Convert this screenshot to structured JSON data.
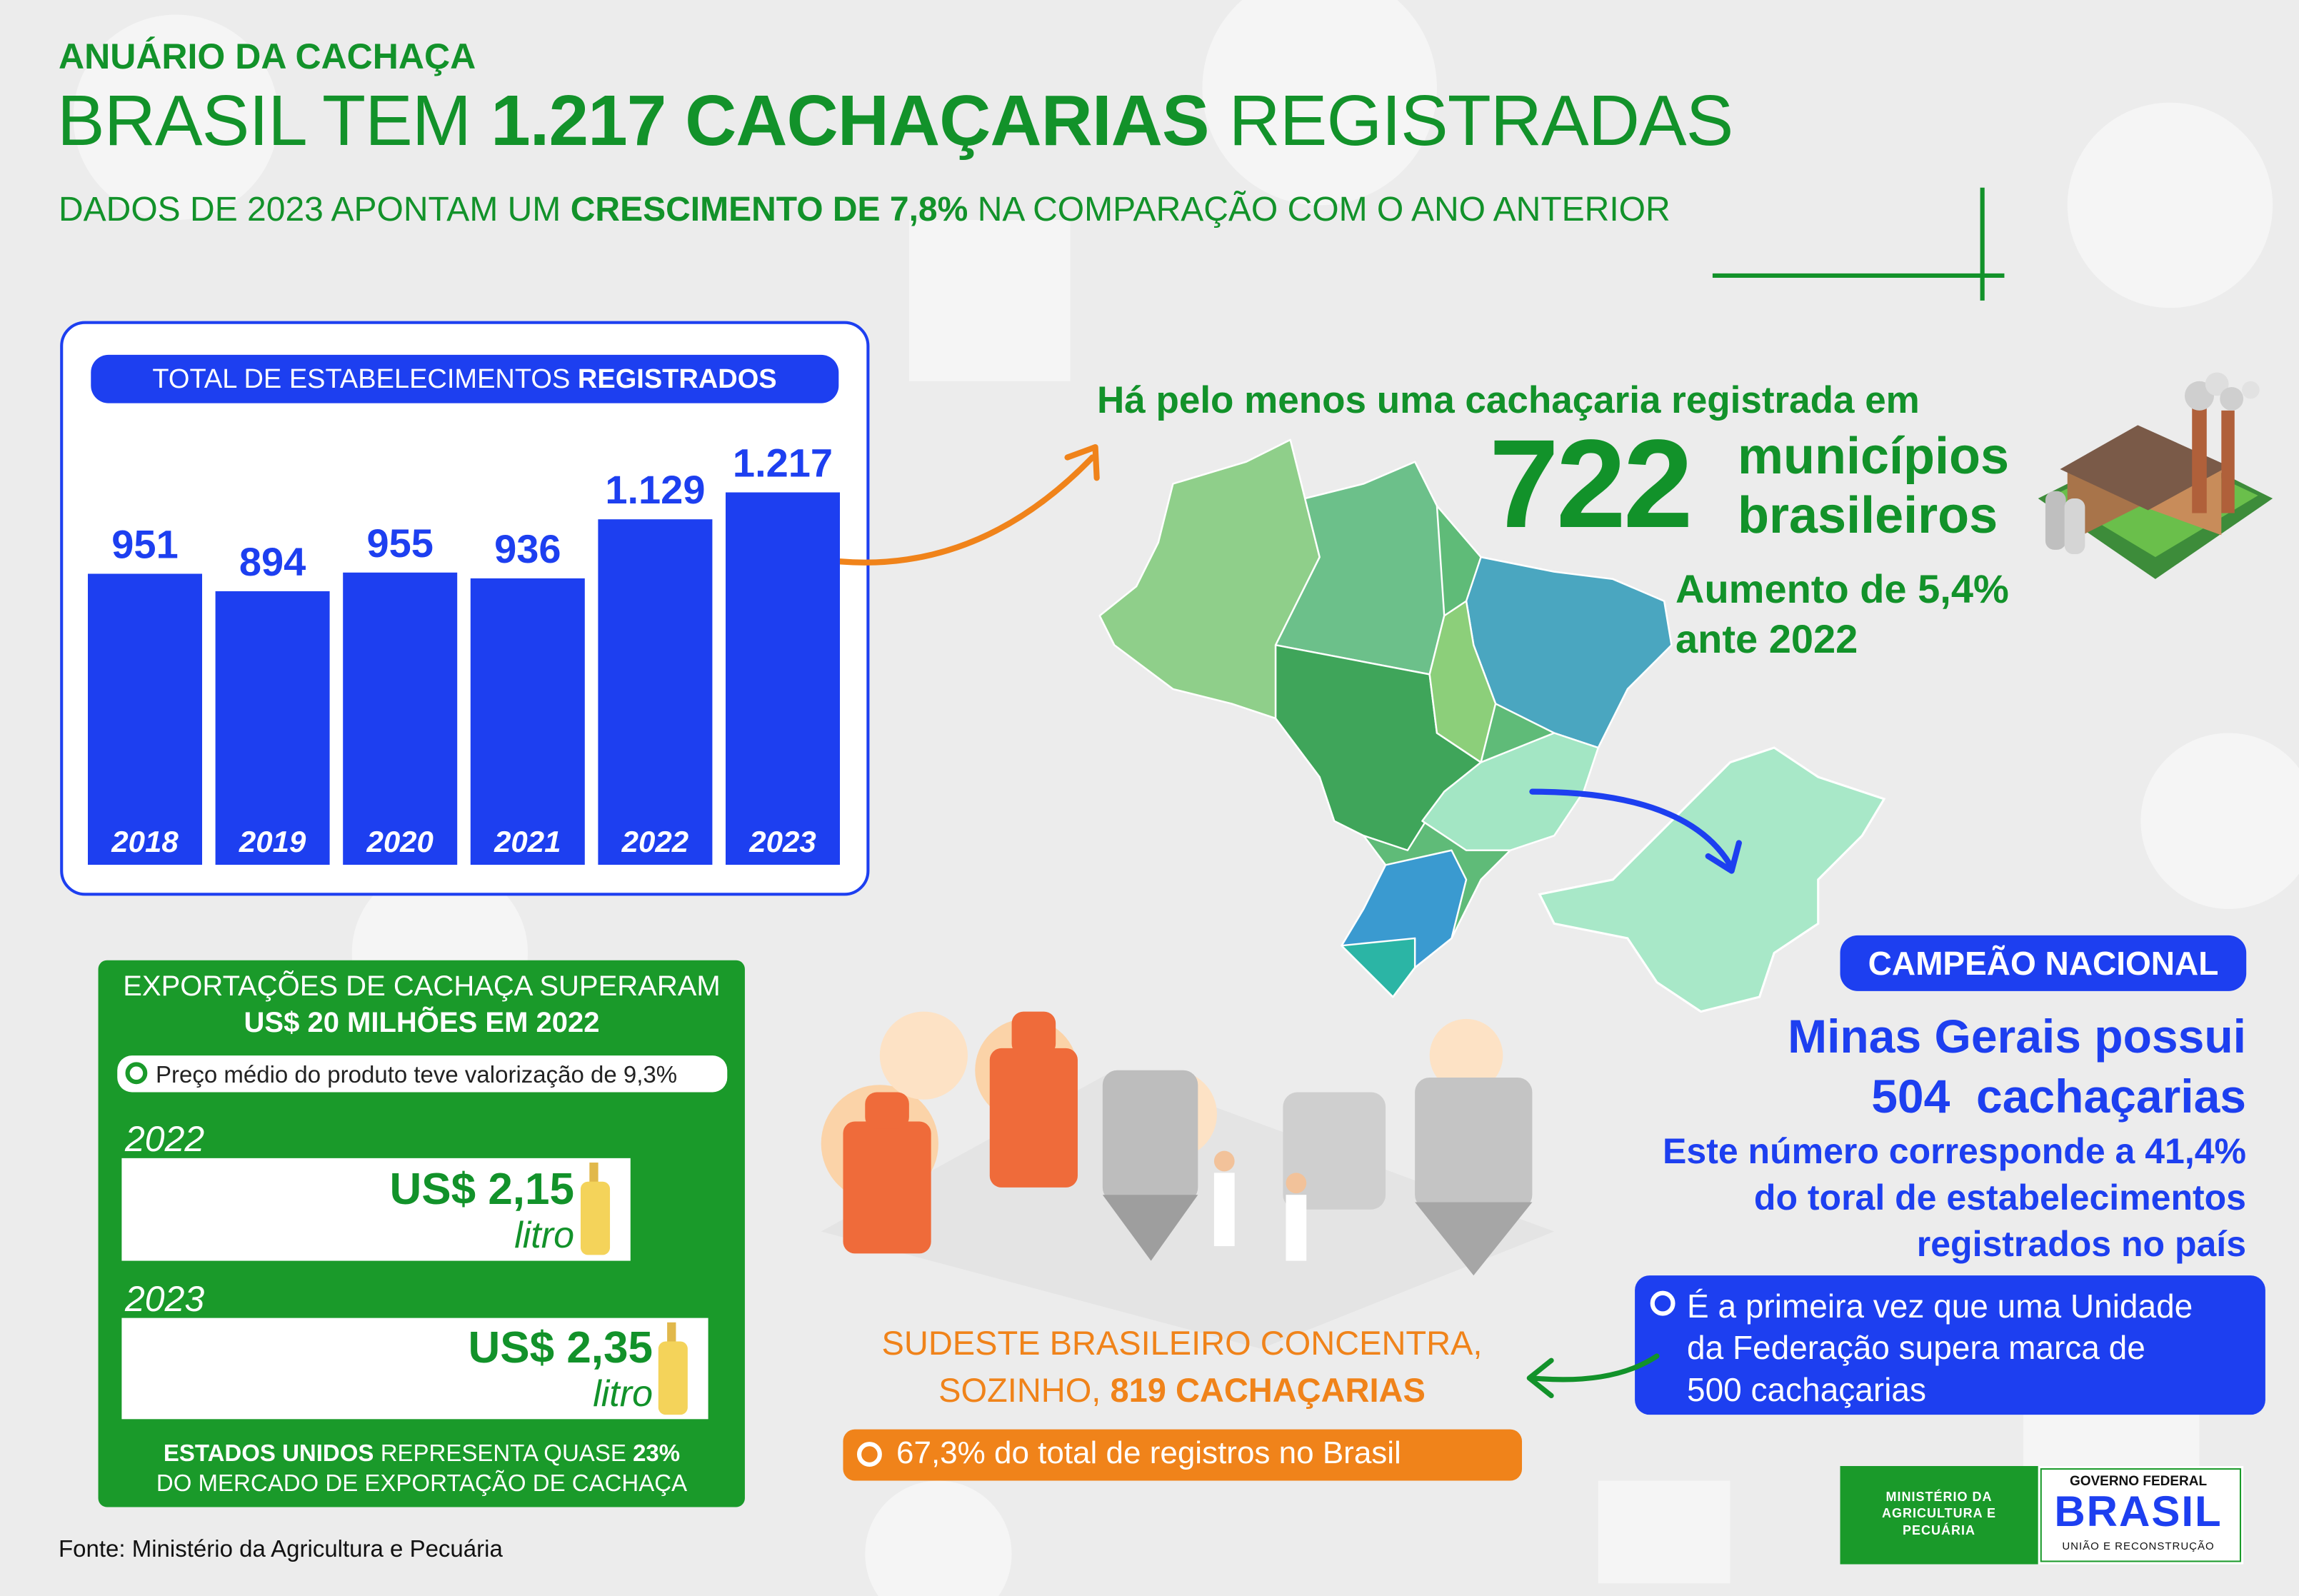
{
  "header": {
    "kicker": "ANUÁRIO DA CACHAÇA",
    "title": [
      "BRASIL TEM",
      "1.217 CACHAÇARIAS",
      "REGISTRADAS"
    ],
    "subtitle": [
      "DADOS DE 2023 APONTAM UM",
      "CRESCIMENTO DE 7,8%",
      "NA COMPARAÇÃO COM O ANO ANTERIOR"
    ]
  },
  "chart_data": {
    "type": "bar",
    "title": [
      "TOTAL DE ESTABELECIMENTOS",
      "REGISTRADOS"
    ],
    "categories": [
      "2018",
      "2019",
      "2020",
      "2021",
      "2022",
      "2023"
    ],
    "values": [
      951,
      894,
      955,
      936,
      1129,
      1217
    ],
    "value_labels": [
      "951",
      "894",
      "955",
      "936",
      "1.129",
      "1.217"
    ],
    "color": "#1d3ff0"
  },
  "municipalities": {
    "intro": "Há pelo menos uma cachaçaria registrada em",
    "count": "722",
    "label": [
      "municípios",
      "brasileiros"
    ],
    "growth": [
      "Aumento de 5,4%",
      "ante 2022"
    ]
  },
  "champion": {
    "badge": "CAMPEÃO NACIONAL",
    "headline": [
      "Minas Gerais possui",
      "504  cachaçarias"
    ],
    "detail": [
      "Este número corresponde a 41,4%",
      "do toral de estabelecimentos",
      "registrados no país"
    ],
    "note": [
      "É a primeira vez que uma Unidade",
      "da Federação supera marca de",
      "500 cachaçarias"
    ]
  },
  "southeast": {
    "headline": [
      "SUDESTE BRASILEIRO CONCENTRA,",
      "SOZINHO,",
      "819 CACHAÇARIAS"
    ],
    "share": "67,3% do total de registros no Brasil"
  },
  "exports": {
    "headline": [
      "EXPORTAÇÕES DE CACHAÇA SUPERARAM",
      "US$ 20 MILHÕES EM 2022"
    ],
    "note": "Preço médio do produto teve valorização de 9,3%",
    "prices": [
      {
        "year": "2022",
        "price": "US$ 2,15",
        "unit": "litro"
      },
      {
        "year": "2023",
        "price": "US$ 2,35",
        "unit": "litro"
      }
    ],
    "footer": [
      "ESTADOS UNIDOS",
      "REPRESENTA QUASE",
      "23%",
      "DO MERCADO DE EXPORTAÇÃO DE CACHAÇA"
    ]
  },
  "source": "Fonte: Ministério da Agricultura e Pecuária",
  "logos": {
    "ministry": "MINISTÉRIO DA AGRICULTURA E PECUÁRIA",
    "government": "GOVERNO FEDERAL",
    "brand": "BRASIL",
    "motto": "UNIÃO E RECONSTRUÇÃO"
  }
}
